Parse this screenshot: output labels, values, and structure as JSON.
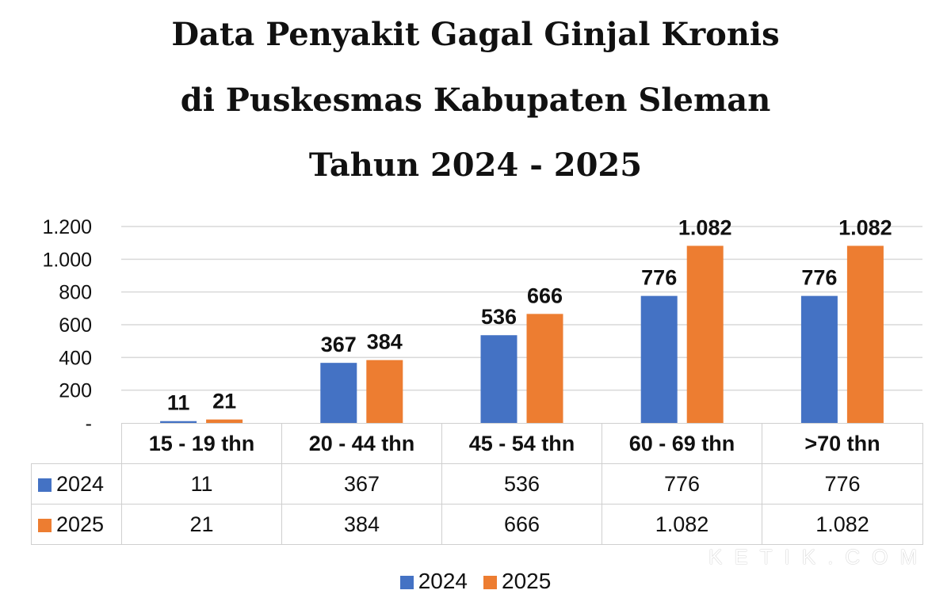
{
  "chart_data": {
    "type": "bar",
    "title_lines": [
      "Data Penyakit Gagal Ginjal Kronis",
      "di Puskesmas Kabupaten Sleman",
      "Tahun 2024 - 2025"
    ],
    "categories": [
      "15 - 19 thn",
      "20 - 44 thn",
      "45 - 54 thn",
      "60 - 69 thn",
      ">70 thn"
    ],
    "series": [
      {
        "name": "2024",
        "values": [
          11,
          367,
          536,
          776,
          776
        ],
        "labels": [
          "11",
          "367",
          "536",
          "776",
          "776"
        ],
        "color": "#4472C4"
      },
      {
        "name": "2025",
        "values": [
          21,
          384,
          666,
          1082,
          1082
        ],
        "labels": [
          "21",
          "384",
          "666",
          "1.082",
          "1.082"
        ],
        "color": "#ED7D31"
      }
    ],
    "ylim": [
      0,
      1200
    ],
    "yticks": [
      0,
      200,
      400,
      600,
      800,
      1000,
      1200
    ],
    "ytick_labels": [
      "-",
      "200",
      "400",
      "600",
      "800",
      "1.000",
      "1.200"
    ],
    "grid": true,
    "legend": "bottom",
    "data_table": true
  },
  "watermark": "KETIK.COM"
}
